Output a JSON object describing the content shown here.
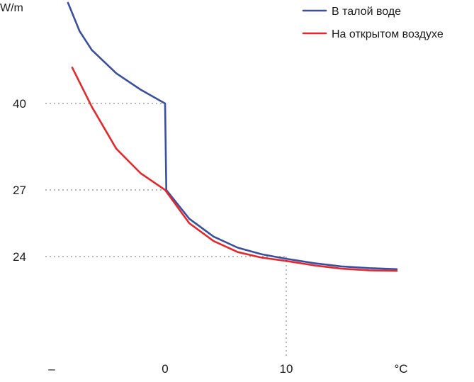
{
  "chart_data": {
    "type": "line",
    "title": "",
    "ylabel": "W/m",
    "xlabel": "°C",
    "x_ticks": [
      "–",
      "0",
      "10",
      "°C"
    ],
    "y_ticks": [
      "40",
      "27",
      "24"
    ],
    "grid": false,
    "legend_position": "top-right",
    "reference_lines": [
      {
        "x": 0,
        "y": 40
      },
      {
        "x": 0,
        "y": 27
      },
      {
        "x": 10,
        "y": 24
      }
    ],
    "series": [
      {
        "name": "В талой воде",
        "color": "#3a4fa0",
        "points": [
          {
            "x": -8,
            "y": 56
          },
          {
            "x": -7,
            "y": 51.5
          },
          {
            "x": -6,
            "y": 48.5
          },
          {
            "x": -4,
            "y": 44.8
          },
          {
            "x": -2,
            "y": 42.2
          },
          {
            "x": 0,
            "y": 40
          },
          {
            "x": 0.1,
            "y": 27
          },
          {
            "x": 2,
            "y": 25.7
          },
          {
            "x": 4,
            "y": 24.9
          },
          {
            "x": 6,
            "y": 24.4
          },
          {
            "x": 8,
            "y": 24.1
          },
          {
            "x": 10,
            "y": 23.8
          },
          {
            "x": 12,
            "y": 23.4
          },
          {
            "x": 14,
            "y": 23.1
          },
          {
            "x": 16,
            "y": 22.95
          },
          {
            "x": 18,
            "y": 22.85
          }
        ]
      },
      {
        "name": "На открытом воздухе",
        "color": "#e3292d",
        "points": [
          {
            "x": -7.6,
            "y": 45.7
          },
          {
            "x": -6,
            "y": 39.5
          },
          {
            "x": -4,
            "y": 33.2
          },
          {
            "x": -2,
            "y": 29.5
          },
          {
            "x": 0,
            "y": 27
          },
          {
            "x": 2,
            "y": 25.5
          },
          {
            "x": 4,
            "y": 24.7
          },
          {
            "x": 6,
            "y": 24.2
          },
          {
            "x": 8,
            "y": 23.9
          },
          {
            "x": 10,
            "y": 23.6
          },
          {
            "x": 12,
            "y": 23.2
          },
          {
            "x": 14,
            "y": 22.9
          },
          {
            "x": 16,
            "y": 22.75
          },
          {
            "x": 18,
            "y": 22.7
          }
        ]
      }
    ]
  }
}
